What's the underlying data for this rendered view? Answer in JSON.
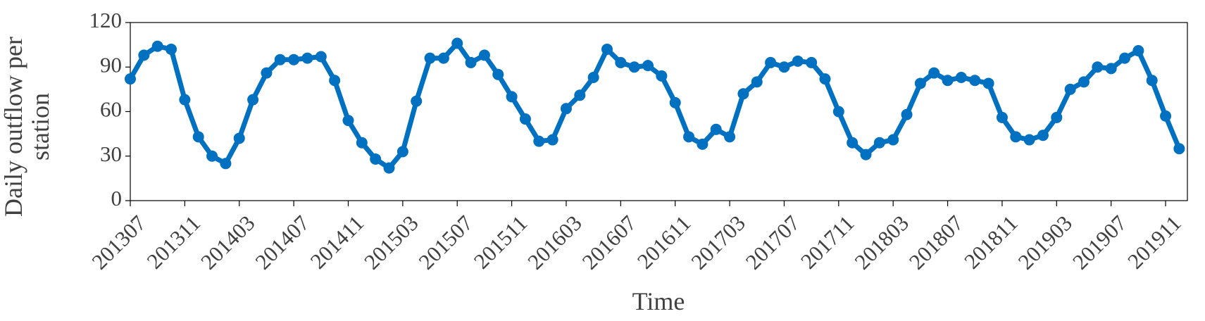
{
  "chart_data": {
    "type": "line",
    "x_label": "Time",
    "y_label": "Daily outflow per station",
    "categories": [
      "201307",
      null,
      null,
      null,
      "201311",
      null,
      null,
      null,
      "201403",
      null,
      null,
      null,
      "201407",
      null,
      null,
      null,
      "201411",
      null,
      null,
      null,
      "201503",
      null,
      null,
      null,
      "201507",
      null,
      null,
      null,
      "201511",
      null,
      null,
      null,
      "201603",
      null,
      null,
      null,
      "201607",
      null,
      null,
      null,
      "201611",
      null,
      null,
      null,
      "201703",
      null,
      null,
      null,
      "201707",
      null,
      null,
      null,
      "201711",
      null,
      null,
      null,
      "201803",
      null,
      null,
      null,
      "201807",
      null,
      null,
      null,
      "201811",
      null,
      null,
      null,
      "201903",
      null,
      null,
      null,
      "201907",
      null,
      null,
      null,
      "201911",
      null
    ],
    "values": [
      82,
      98,
      104,
      102,
      68,
      43,
      30,
      25,
      42,
      68,
      86,
      95,
      95,
      96,
      97,
      81,
      54,
      39,
      28,
      22,
      33,
      67,
      96,
      96,
      106,
      93,
      98,
      85,
      70,
      55,
      40,
      41,
      62,
      71,
      83,
      102,
      93,
      90,
      91,
      84,
      66,
      43,
      38,
      48,
      43,
      72,
      80,
      93,
      90,
      94,
      93,
      82,
      60,
      39,
      31,
      39,
      41,
      58,
      79,
      86,
      81,
      83,
      81,
      79,
      56,
      43,
      41,
      44,
      56,
      75,
      80,
      90,
      89,
      96,
      101,
      81,
      57,
      35
    ],
    "color": "#0070c0",
    "ylim": [
      0,
      120
    ],
    "yticks": [
      0,
      30,
      60,
      90,
      120
    ]
  }
}
